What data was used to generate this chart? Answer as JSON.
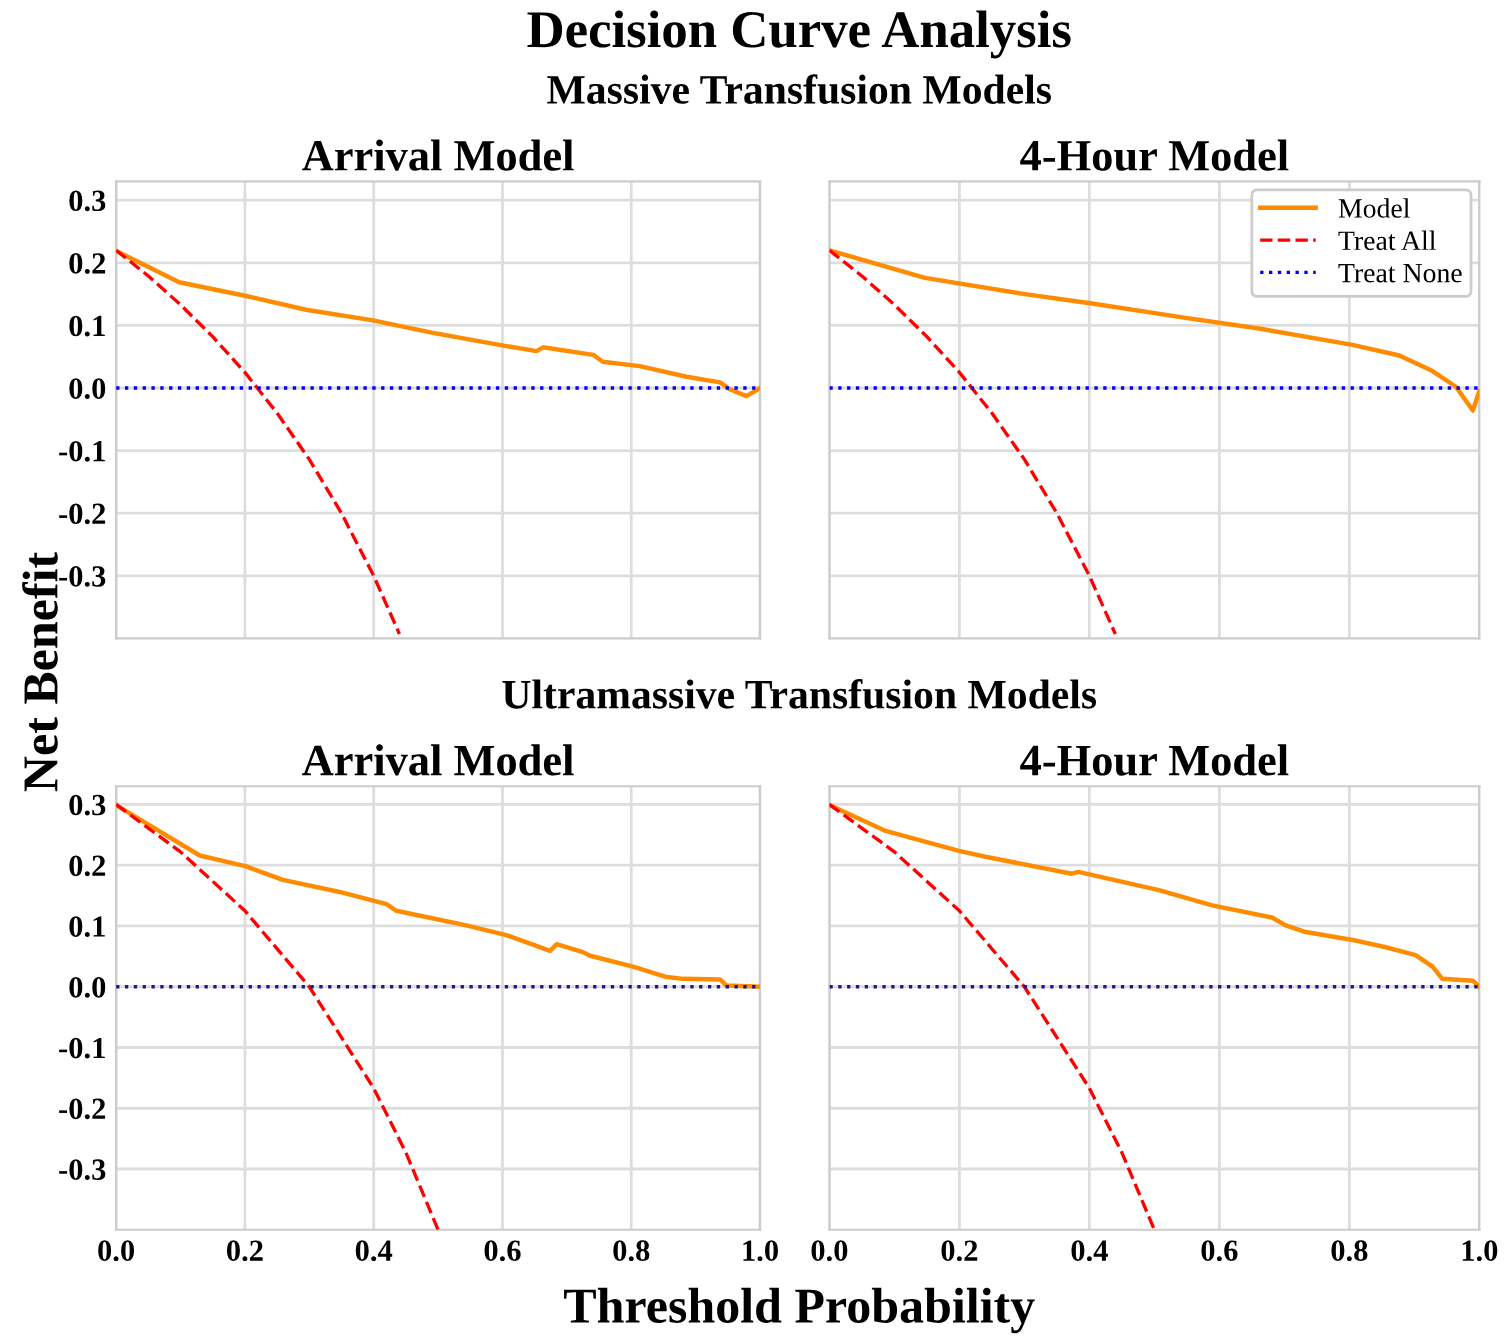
{
  "chart_data": [
    {
      "type": "line",
      "title": "Arrival Model",
      "subtitle": "Massive Transfusion Models",
      "annotations": [
        "Decision Curve Analysis"
      ],
      "ylabel": "Net Benefit",
      "xlim": [
        0,
        1
      ],
      "ylim": [
        -0.4,
        0.33
      ],
      "xticks": [
        {
          "value": 0,
          "label": null
        },
        {
          "value": 0.2,
          "label": null
        },
        {
          "value": 0.4,
          "label": null
        },
        {
          "value": 0.6,
          "label": null
        },
        {
          "value": 0.8,
          "label": null
        },
        {
          "value": 1,
          "label": null
        }
      ],
      "yticks": [
        {
          "value": -0.3,
          "label": "-0.3"
        },
        {
          "value": -0.2,
          "label": "-0.2"
        },
        {
          "value": -0.1,
          "label": "-0.1"
        },
        {
          "value": 0.0,
          "label": "0.0"
        },
        {
          "value": 0.1,
          "label": "0.1"
        },
        {
          "value": 0.2,
          "label": "0.2"
        },
        {
          "value": 0.3,
          "label": "0.3"
        }
      ],
      "grid": true,
      "tick_labels": "y",
      "series": [
        {
          "color": "#ff8c00",
          "line_style": "solid",
          "x": [
            0,
            0.098,
            0.202,
            0.295,
            0.399,
            0.492,
            0.606,
            0.653,
            0.663,
            0.741,
            0.756,
            0.813,
            0.886,
            0.938,
            0.953,
            0.979,
            1.0
          ],
          "values": [
            0.219,
            0.169,
            0.147,
            0.125,
            0.108,
            0.088,
            0.067,
            0.059,
            0.065,
            0.053,
            0.042,
            0.035,
            0.018,
            0.009,
            -0.002,
            -0.013,
            0.0
          ]
        },
        {
          "color": "#ff0000",
          "line_style": "dashed",
          "x": [
            0,
            0.05,
            0.1,
            0.15,
            0.2,
            0.25,
            0.3,
            0.35,
            0.4,
            0.44
          ],
          "values": [
            0.22,
            0.179,
            0.133,
            0.082,
            0.025,
            -0.04,
            -0.114,
            -0.2,
            -0.3,
            -0.393
          ]
        },
        {
          "color": "#0000ff",
          "line_style": "dotted",
          "x": [
            0,
            1
          ],
          "values": [
            0.0,
            0.0
          ]
        }
      ]
    },
    {
      "type": "line",
      "title": "4-Hour Model",
      "xlim": [
        0,
        1
      ],
      "ylim": [
        -0.4,
        0.33
      ],
      "xticks": [
        {
          "value": 0,
          "label": null
        },
        {
          "value": 0.2,
          "label": null
        },
        {
          "value": 0.4,
          "label": null
        },
        {
          "value": 0.6,
          "label": null
        },
        {
          "value": 0.8,
          "label": null
        },
        {
          "value": 1,
          "label": null
        }
      ],
      "yticks": [
        {
          "value": -0.3,
          "label": null
        },
        {
          "value": -0.2,
          "label": null
        },
        {
          "value": -0.1,
          "label": null
        },
        {
          "value": 0.0,
          "label": null
        },
        {
          "value": 0.1,
          "label": null
        },
        {
          "value": 0.2,
          "label": null
        },
        {
          "value": 0.3,
          "label": null
        }
      ],
      "grid": true,
      "tick_labels": false,
      "legend": "top right",
      "series": [
        {
          "name": "Model",
          "color": "#ff8c00",
          "line_style": "solid",
          "x": [
            0,
            0.147,
            0.301,
            0.404,
            0.548,
            0.661,
            0.805,
            0.877,
            0.928,
            0.964,
            0.99,
            1.0
          ],
          "values": [
            0.22,
            0.176,
            0.15,
            0.135,
            0.112,
            0.095,
            0.069,
            0.052,
            0.027,
            0.002,
            -0.036,
            -0.005
          ]
        },
        {
          "name": "Treat All",
          "color": "#ff0000",
          "line_style": "dashed",
          "x": [
            0,
            0.05,
            0.1,
            0.15,
            0.2,
            0.25,
            0.3,
            0.35,
            0.4,
            0.44
          ],
          "values": [
            0.22,
            0.179,
            0.133,
            0.082,
            0.025,
            -0.04,
            -0.114,
            -0.2,
            -0.3,
            -0.393
          ]
        },
        {
          "name": "Treat None",
          "color": "#0000ff",
          "line_style": "dotted",
          "x": [
            0,
            1
          ],
          "values": [
            0.0,
            0.0
          ]
        }
      ]
    },
    {
      "type": "line",
      "title": "Arrival Model",
      "subtitle": "Ultramassive Transfusion Models",
      "xlabel": "Threshold Probability",
      "xlim": [
        0,
        1
      ],
      "ylim": [
        -0.4,
        0.33
      ],
      "xticks": [
        {
          "value": 0,
          "label": "0.0"
        },
        0.2,
        0.4,
        0.6,
        0.8,
        {
          "value": 1,
          "label": "1.0"
        }
      ],
      "yticks": [
        {
          "value": -0.3,
          "label": "-0.3"
        },
        {
          "value": -0.2,
          "label": "-0.2"
        },
        {
          "value": -0.1,
          "label": "-0.1"
        },
        {
          "value": 0.0,
          "label": "0.0"
        },
        {
          "value": 0.1,
          "label": "0.1"
        },
        {
          "value": 0.2,
          "label": "0.2"
        },
        {
          "value": 0.3,
          "label": "0.3"
        }
      ],
      "grid": true,
      "series": [
        {
          "color": "#ff8c00",
          "line_style": "solid",
          "x": [
            0,
            0.078,
            0.13,
            0.202,
            0.259,
            0.347,
            0.42,
            0.435,
            0.544,
            0.606,
            0.674,
            0.684,
            0.725,
            0.736,
            0.803,
            0.855,
            0.881,
            0.938,
            0.948,
            1.0
          ],
          "values": [
            0.299,
            0.249,
            0.216,
            0.198,
            0.176,
            0.156,
            0.136,
            0.125,
            0.101,
            0.085,
            0.059,
            0.07,
            0.057,
            0.051,
            0.033,
            0.016,
            0.013,
            0.012,
            0.002,
            0.0
          ]
        },
        {
          "color": "#ff0000",
          "line_style": "dashed",
          "x": [
            0,
            0.1,
            0.2,
            0.3,
            0.4,
            0.45,
            0.5
          ],
          "values": [
            0.3,
            0.222,
            0.125,
            0.0,
            -0.167,
            -0.273,
            -0.4
          ]
        },
        {
          "color": "#1a1a8c",
          "line_style": "dotted",
          "x": [
            0,
            1
          ],
          "values": [
            0.0,
            0.0
          ]
        }
      ]
    },
    {
      "type": "line",
      "title": "4-Hour Model",
      "xlim": [
        0,
        1
      ],
      "ylim": [
        -0.4,
        0.33
      ],
      "xticks": [
        {
          "value": 0,
          "label": "0.0"
        },
        0.2,
        0.4,
        0.6,
        0.8,
        {
          "value": 1,
          "label": "1.0"
        }
      ],
      "yticks": [
        {
          "value": -0.3,
          "label": null
        },
        {
          "value": -0.2,
          "label": null
        },
        {
          "value": -0.1,
          "label": null
        },
        {
          "value": 0.0,
          "label": null
        },
        {
          "value": 0.1,
          "label": null
        },
        {
          "value": 0.2,
          "label": null
        },
        {
          "value": 0.3,
          "label": null
        }
      ],
      "grid": true,
      "tick_labels": "x",
      "series": [
        {
          "color": "#ff8c00",
          "line_style": "solid",
          "x": [
            0,
            0.085,
            0.198,
            0.24,
            0.373,
            0.383,
            0.507,
            0.589,
            0.681,
            0.702,
            0.733,
            0.805,
            0.856,
            0.902,
            0.928,
            0.943,
            0.99,
            1.0
          ],
          "values": [
            0.299,
            0.257,
            0.224,
            0.214,
            0.186,
            0.189,
            0.159,
            0.134,
            0.114,
            0.101,
            0.09,
            0.077,
            0.065,
            0.052,
            0.033,
            0.013,
            0.01,
            0.0
          ]
        },
        {
          "color": "#ff0000",
          "line_style": "dashed",
          "x": [
            0,
            0.1,
            0.2,
            0.3,
            0.4,
            0.45,
            0.5
          ],
          "values": [
            0.3,
            0.222,
            0.125,
            0.0,
            -0.167,
            -0.273,
            -0.4
          ]
        },
        {
          "color": "#1a1a8c",
          "line_style": "dotted",
          "x": [
            0,
            1
          ],
          "values": [
            0.0,
            0.0
          ]
        }
      ]
    }
  ]
}
